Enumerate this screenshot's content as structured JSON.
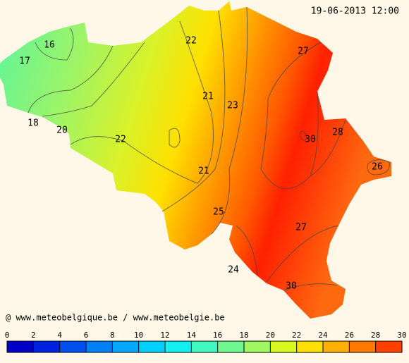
{
  "timestamp": "19-06-2013 12:00",
  "credit": "@ www.meteobelgique.be / www.meteobelgie.be",
  "contour_labels": [
    22,
    27,
    16,
    17,
    21,
    23,
    18,
    20,
    30,
    28,
    22,
    26,
    21,
    25,
    27,
    24,
    30
  ],
  "colorbar": {
    "ticks": [
      0,
      2,
      4,
      6,
      8,
      10,
      12,
      14,
      16,
      18,
      20,
      22,
      24,
      26,
      28,
      30
    ],
    "colors": [
      "#0000c8",
      "#0020e0",
      "#0050f0",
      "#0080f8",
      "#00a8ff",
      "#00d0ff",
      "#10f0f0",
      "#40f8c0",
      "#70f890",
      "#a0f860",
      "#d8f820",
      "#ffe000",
      "#ffb000",
      "#ff7800",
      "#ff4000"
    ]
  }
}
